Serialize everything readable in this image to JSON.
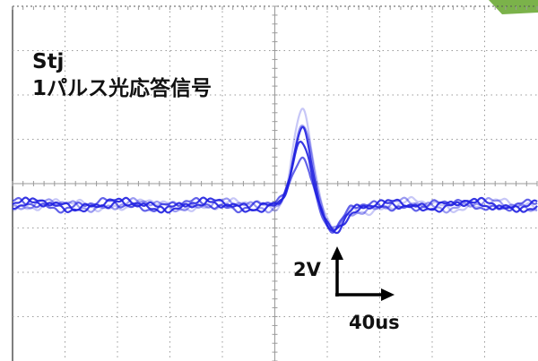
{
  "chart_data": {
    "type": "line",
    "title_lines": [
      "Stj",
      "1パルス光応答信号"
    ],
    "scale_bar": {
      "vertical_label": "2V",
      "horizontal_label": "40us"
    },
    "grid": true,
    "grid_divisions": {
      "x": 10,
      "y": 8
    },
    "trace_color": "#2020e0",
    "series": [
      {
        "peak_height_fraction": 1.0,
        "opacity": 0.25
      },
      {
        "peak_height_fraction": 0.8,
        "opacity": 0.45
      },
      {
        "peak_height_fraction": 0.72,
        "opacity": 0.9
      },
      {
        "peak_height_fraction": 0.62,
        "opacity": 0.9
      },
      {
        "peak_height_fraction": 0.5,
        "opacity": 0.7
      }
    ]
  },
  "colors": {
    "grid": "#9a9a9a",
    "frame": "#555555",
    "text": "#111111",
    "corner_accent": "#7bb24a"
  },
  "icons": {
    "scale_arrows": "arrow-up-right-icon"
  }
}
